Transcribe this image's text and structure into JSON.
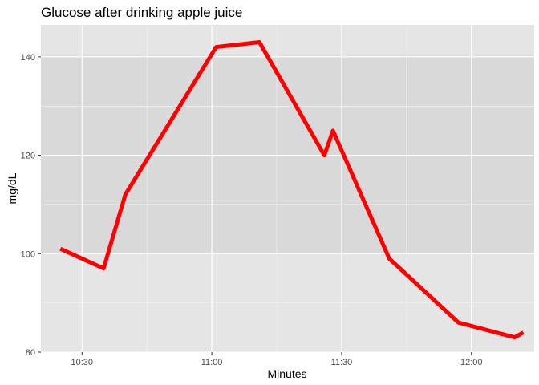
{
  "chart_data": {
    "type": "line",
    "title": "Glucose after drinking apple juice",
    "xlabel": "Minutes",
    "ylabel": "mg/dL",
    "x_axis": {
      "type": "time",
      "ticks": [
        "10:30",
        "11:00",
        "11:30",
        "12:00"
      ]
    },
    "y_axis": {
      "ticks": [
        80,
        100,
        120,
        140
      ]
    },
    "highlight_band": {
      "y_from": 100,
      "y_to": 140,
      "color": "#d9d9d9"
    },
    "grid": true,
    "panel_background": "#e5e5e5",
    "series": [
      {
        "color": "#ff0000",
        "x": [
          "10:25",
          "10:35",
          "10:40",
          "11:01",
          "11:11",
          "11:26",
          "11:28",
          "11:41",
          "11:57",
          "12:10",
          "12:12"
        ],
        "y": [
          101,
          97,
          112,
          142,
          143,
          120,
          125,
          99,
          86,
          83,
          84
        ]
      }
    ]
  }
}
